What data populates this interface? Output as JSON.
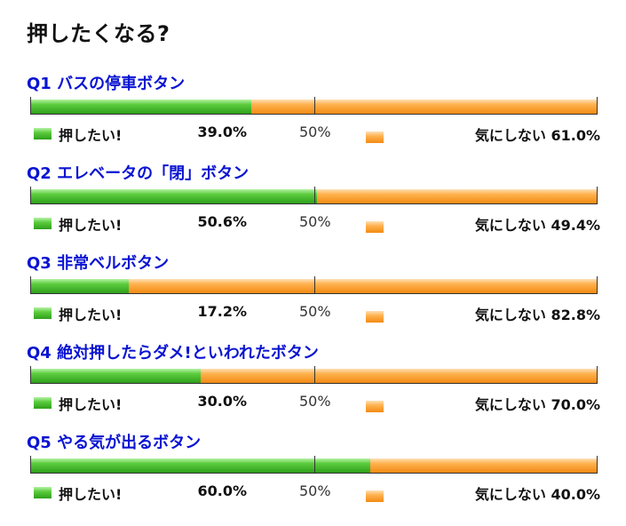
{
  "title": "押したくなる?",
  "midpoint_label": "50%",
  "legend": {
    "yes_label": "押したい!",
    "no_label": "気にしない"
  },
  "colors": {
    "question_text": "#0a14d2",
    "yes_series": "#4cbf2e",
    "no_series": "#ff9f2a"
  },
  "questions": [
    {
      "title": "Q1 バスの停車ボタン",
      "yes_pct": "39.0%",
      "no_pct": "61.0%"
    },
    {
      "title": "Q2 エレベータの「閉」ボタン",
      "yes_pct": "50.6%",
      "no_pct": "49.4%"
    },
    {
      "title": "Q3 非常ベルボタン",
      "yes_pct": "17.2%",
      "no_pct": "82.8%"
    },
    {
      "title": "Q4 絶対押したらダメ!といわれたボタン",
      "yes_pct": "30.0%",
      "no_pct": "70.0%"
    },
    {
      "title": "Q5 やる気が出るボタン",
      "yes_pct": "60.0%",
      "no_pct": "40.0%"
    }
  ],
  "chart_data": {
    "type": "bar",
    "orientation": "horizontal",
    "stacked": true,
    "title": "押したくなる?",
    "categories": [
      "Q1 バスの停車ボタン",
      "Q2 エレベータの「閉」ボタン",
      "Q3 非常ベルボタン",
      "Q4 絶対押したらダメ!といわれたボタン",
      "Q5 やる気が出るボタン"
    ],
    "series": [
      {
        "name": "押したい!",
        "values": [
          39.0,
          50.6,
          17.2,
          30.0,
          60.0
        ],
        "color": "#4cbf2e"
      },
      {
        "name": "気にしない",
        "values": [
          61.0,
          49.4,
          82.8,
          70.0,
          40.0
        ],
        "color": "#ff9f2a"
      }
    ],
    "xlim": [
      0,
      100
    ],
    "midline": 50,
    "legend_placement": "below-each-bar"
  }
}
